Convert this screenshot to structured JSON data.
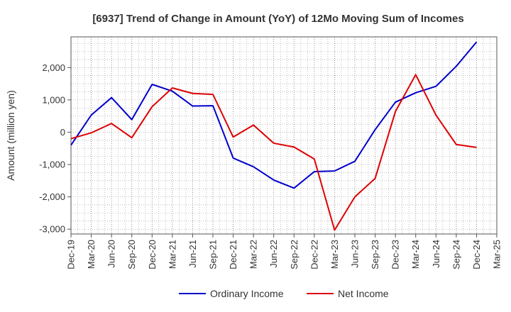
{
  "chart_data": {
    "type": "line",
    "title": "[6937]  Trend of Change in Amount (YoY) of 12Mo Moving Sum of Incomes",
    "ylabel": "Amount (million yen)",
    "xlabel": "",
    "ylim": [
      -3150,
      2950
    ],
    "yticks": [
      -3000,
      -2000,
      -1000,
      0,
      1000,
      2000
    ],
    "ytick_labels": [
      "-3,000",
      "-2,000",
      "-1,000",
      "0",
      "1,000",
      "2,000"
    ],
    "categories": [
      "Dec-19",
      "Mar-20",
      "Jun-20",
      "Sep-20",
      "Dec-20",
      "Mar-21",
      "Jun-21",
      "Sep-21",
      "Dec-21",
      "Mar-22",
      "Jun-22",
      "Sep-22",
      "Dec-22",
      "Mar-23",
      "Jun-23",
      "Sep-23",
      "Dec-23",
      "Mar-24",
      "Jun-24",
      "Sep-24",
      "Dec-24",
      "Mar-25"
    ],
    "grid": true,
    "legend_position": "bottom-center",
    "series": [
      {
        "name": "Ordinary Income",
        "color": "#0000cc",
        "values": [
          -400,
          530,
          1070,
          390,
          1480,
          1270,
          810,
          820,
          -800,
          -1070,
          -1480,
          -1730,
          -1220,
          -1200,
          -900,
          80,
          930,
          1220,
          1420,
          2040,
          2790,
          null
        ]
      },
      {
        "name": "Net Income",
        "color": "#dd0000",
        "values": [
          -200,
          -20,
          270,
          -170,
          790,
          1370,
          1200,
          1170,
          -150,
          220,
          -340,
          -460,
          -830,
          -3030,
          -2000,
          -1430,
          640,
          1780,
          530,
          -380,
          -470,
          null
        ]
      }
    ]
  }
}
